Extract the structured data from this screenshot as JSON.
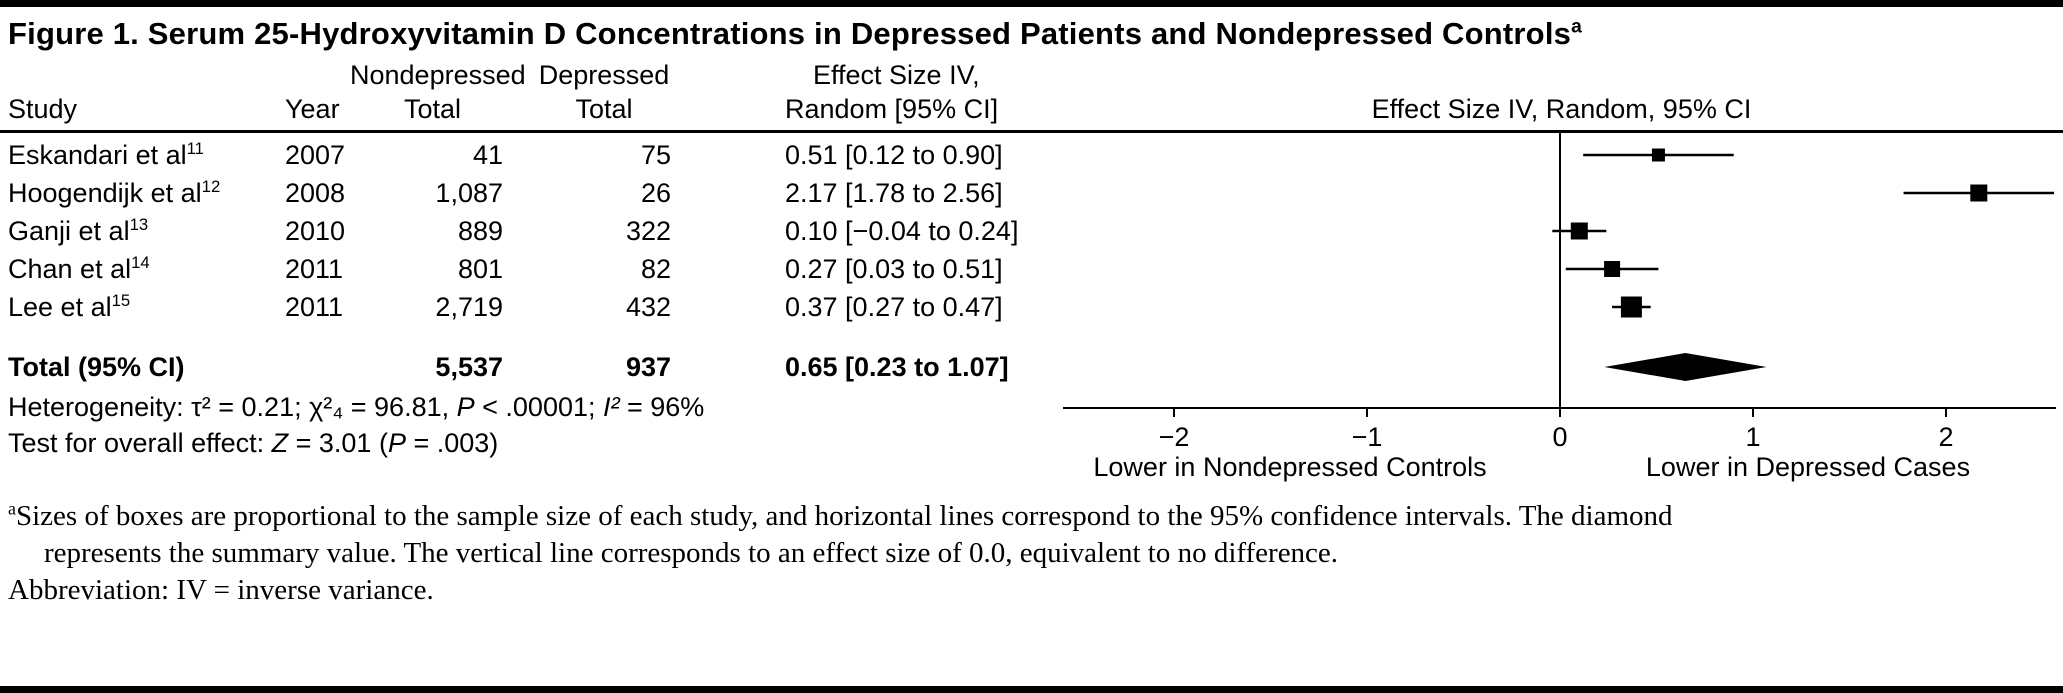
{
  "figure": {
    "title": "Figure 1. Serum 25-Hydroxyvitamin D Concentrations in Depressed Patients and Nondepressed Controls",
    "title_superscript": "a"
  },
  "table": {
    "headers": {
      "study": "Study",
      "year": "Year",
      "nondepressed_line1": "Nondepressed",
      "nondepressed_line2": "Total",
      "depressed_line1": "Depressed",
      "depressed_line2": "Total",
      "effect_line1": "Effect Size IV,",
      "effect_line2": "Random [95% CI]",
      "plot": "Effect Size IV, Random, 95% CI"
    },
    "rows": [
      {
        "study": "Eskandari et al",
        "ref": "11",
        "year": "2007",
        "nondepressed": "41",
        "depressed": "75",
        "effect": "0.51 [0.12 to 0.90]"
      },
      {
        "study": "Hoogendijk et al",
        "ref": "12",
        "year": "2008",
        "nondepressed": "1,087",
        "depressed": "26",
        "effect": "2.17 [1.78 to 2.56]"
      },
      {
        "study": "Ganji et al",
        "ref": "13",
        "year": "2010",
        "nondepressed": "889",
        "depressed": "322",
        "effect": "0.10 [−0.04 to 0.24]"
      },
      {
        "study": "Chan et al",
        "ref": "14",
        "year": "2011",
        "nondepressed": "801",
        "depressed": "82",
        "effect": "0.27 [0.03 to 0.51]"
      },
      {
        "study": "Lee et al",
        "ref": "15",
        "year": "2011",
        "nondepressed": "2,719",
        "depressed": "432",
        "effect": "0.37 [0.27 to 0.47]"
      }
    ],
    "total": {
      "label": "Total (95% CI)",
      "nondepressed": "5,537",
      "depressed": "937",
      "effect": "0.65 [0.23 to 1.07]"
    }
  },
  "stats": {
    "heterogeneity": {
      "p0": "Heterogeneity: τ² = 0.21; χ²₄ = 96.81, ",
      "p1": "P",
      "p2": " < .00001; ",
      "p3": "I²",
      "p4": " = 96%"
    },
    "overall": {
      "o0": "Test for overall effect: ",
      "o1": "Z",
      "o2": " = 3.01 (",
      "o3": "P",
      "o4": " = .003)"
    }
  },
  "footnote": {
    "sup": "a",
    "line1": "Sizes of boxes are proportional to the sample size of each study, and horizontal lines correspond to the 95% confidence intervals. The diamond",
    "line2": "represents the summary value. The vertical line corresponds to an effect size of 0.0, equivalent to no difference.",
    "line3": "Abbreviation: IV = inverse variance."
  },
  "chart_data": {
    "type": "forest",
    "title": "Effect Size IV, Random, 95% CI",
    "x_ticks": [
      {
        "value": -2,
        "label": "−2"
      },
      {
        "value": -1,
        "label": "−1"
      },
      {
        "value": 0,
        "label": "0"
      },
      {
        "value": 1,
        "label": "1"
      },
      {
        "value": 2,
        "label": "2"
      }
    ],
    "xlim": [
      -2.57,
      2.57
    ],
    "zero_line_at": 0,
    "x_direction_labels": {
      "negative": "Lower in Nondepressed Controls",
      "positive": "Lower in Depressed Cases"
    },
    "studies": [
      {
        "name": "Eskandari et al",
        "year": 2007,
        "n_nondepressed": 41,
        "n_depressed": 75,
        "effect": 0.51,
        "ci_low": 0.12,
        "ci_high": 0.9
      },
      {
        "name": "Hoogendijk et al",
        "year": 2008,
        "n_nondepressed": 1087,
        "n_depressed": 26,
        "effect": 2.17,
        "ci_low": 1.78,
        "ci_high": 2.56
      },
      {
        "name": "Ganji et al",
        "year": 2010,
        "n_nondepressed": 889,
        "n_depressed": 322,
        "effect": 0.1,
        "ci_low": -0.04,
        "ci_high": 0.24
      },
      {
        "name": "Chan et al",
        "year": 2011,
        "n_nondepressed": 801,
        "n_depressed": 82,
        "effect": 0.27,
        "ci_low": 0.03,
        "ci_high": 0.51
      },
      {
        "name": "Lee et al",
        "year": 2011,
        "n_nondepressed": 2719,
        "n_depressed": 432,
        "effect": 0.37,
        "ci_low": 0.27,
        "ci_high": 0.47
      }
    ],
    "summary": {
      "label": "Total (95% CI)",
      "n_nondepressed": 5537,
      "n_depressed": 937,
      "effect": 0.65,
      "ci_low": 0.23,
      "ci_high": 1.07
    },
    "colors": {
      "ink": "#000000",
      "background": "#ffffff"
    }
  }
}
